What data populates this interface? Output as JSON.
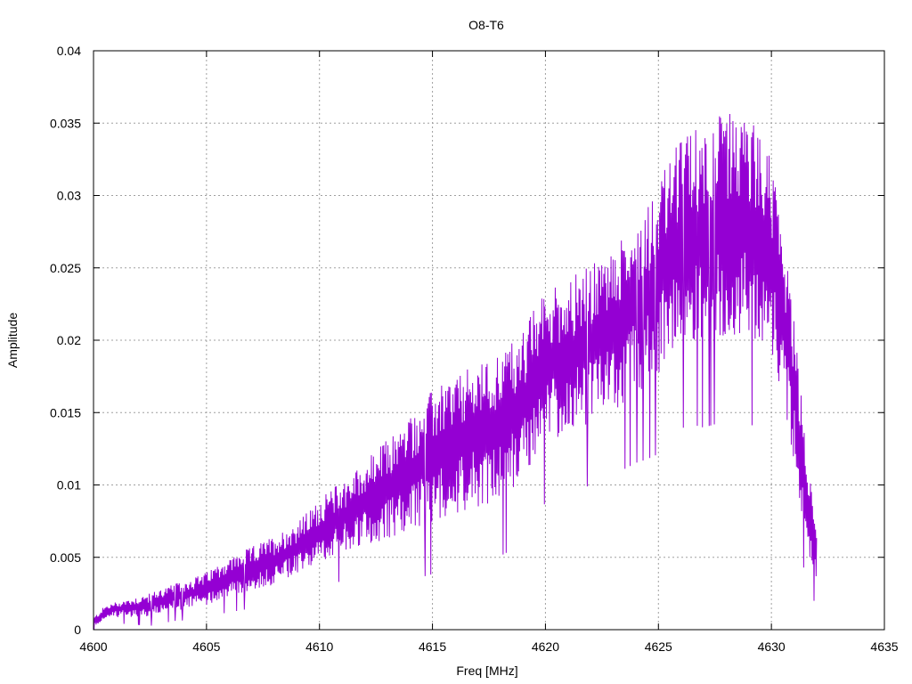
{
  "chart_data": {
    "type": "line",
    "title": "O8-T6",
    "xlabel": "Freq [MHz]",
    "ylabel": "Amplitude",
    "xlim": [
      4600,
      4635
    ],
    "ylim": [
      0,
      0.04
    ],
    "xticks": [
      4600,
      4605,
      4610,
      4615,
      4620,
      4625,
      4630,
      4635
    ],
    "yticks": [
      0,
      0.005,
      0.01,
      0.015,
      0.02,
      0.025,
      0.03,
      0.035,
      0.04
    ],
    "xtick_labels": [
      "4600",
      "4605",
      "4610",
      "4615",
      "4620",
      "4625",
      "4630",
      "4635"
    ],
    "ytick_labels": [
      "0",
      "0.005",
      "0.01",
      "0.015",
      "0.02",
      "0.025",
      "0.03",
      "0.035",
      "0.04"
    ],
    "grid": true,
    "series": [
      {
        "color": "#9400d3",
        "x": [
          4600.0,
          4600.5,
          4601.0,
          4601.5,
          4602.0,
          4602.5,
          4603.0,
          4603.5,
          4604.0,
          4604.5,
          4605.0,
          4605.5,
          4606.0,
          4606.5,
          4607.0,
          4607.5,
          4608.0,
          4608.5,
          4609.0,
          4609.5,
          4610.0,
          4610.5,
          4611.0,
          4611.5,
          4612.0,
          4612.5,
          4613.0,
          4613.5,
          4614.0,
          4614.5,
          4615.0,
          4615.5,
          4616.0,
          4616.5,
          4617.0,
          4617.5,
          4618.0,
          4618.5,
          4619.0,
          4619.5,
          4620.0,
          4620.5,
          4621.0,
          4621.5,
          4622.0,
          4622.5,
          4623.0,
          4623.5,
          4624.0,
          4624.5,
          4625.0,
          4625.5,
          4626.0,
          4626.5,
          4627.0,
          4627.5,
          4628.0,
          4628.5,
          4629.0,
          4629.5,
          4630.0,
          4630.5,
          4631.0,
          4631.5,
          4632.0
        ],
        "y": [
          0.0005,
          0.0012,
          0.0014,
          0.0015,
          0.0016,
          0.0017,
          0.002,
          0.0022,
          0.0024,
          0.0026,
          0.0028,
          0.0033,
          0.0036,
          0.0039,
          0.0042,
          0.0045,
          0.0048,
          0.0052,
          0.0056,
          0.0062,
          0.0068,
          0.0074,
          0.0078,
          0.0082,
          0.0087,
          0.0092,
          0.0097,
          0.0102,
          0.0108,
          0.0113,
          0.012,
          0.0125,
          0.0128,
          0.0131,
          0.0134,
          0.0137,
          0.0142,
          0.0148,
          0.0156,
          0.017,
          0.0182,
          0.0186,
          0.0189,
          0.0194,
          0.0197,
          0.0201,
          0.0207,
          0.0215,
          0.0224,
          0.0233,
          0.0243,
          0.0257,
          0.0267,
          0.0273,
          0.0274,
          0.0278,
          0.0281,
          0.0279,
          0.0277,
          0.0273,
          0.0258,
          0.0221,
          0.0165,
          0.0098,
          0.005
        ],
        "spread": [
          0.0004,
          0.0005,
          0.0006,
          0.0007,
          0.0008,
          0.0009,
          0.001,
          0.001,
          0.0011,
          0.0012,
          0.0013,
          0.0014,
          0.0015,
          0.0016,
          0.0017,
          0.0018,
          0.0019,
          0.002,
          0.0021,
          0.0022,
          0.0024,
          0.0026,
          0.0028,
          0.003,
          0.0033,
          0.0036,
          0.0039,
          0.0042,
          0.0045,
          0.0048,
          0.0051,
          0.0052,
          0.0053,
          0.0054,
          0.0055,
          0.0056,
          0.0057,
          0.0058,
          0.0058,
          0.0058,
          0.0059,
          0.006,
          0.006,
          0.006,
          0.0061,
          0.0062,
          0.0063,
          0.0065,
          0.0068,
          0.0072,
          0.0076,
          0.0078,
          0.008,
          0.0082,
          0.0084,
          0.0085,
          0.0086,
          0.0086,
          0.0085,
          0.0082,
          0.0075,
          0.0066,
          0.0055,
          0.0038,
          0.0022
        ]
      }
    ]
  }
}
